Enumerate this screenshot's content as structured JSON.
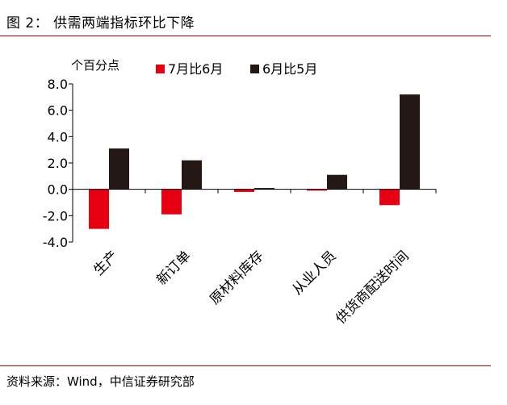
{
  "figure": {
    "title": "图 2：  供需两端指标环比下降",
    "source": "资料来源：Wind，中信证券研究部"
  },
  "chart_data": {
    "type": "bar",
    "title": "",
    "ylabel": "个百分点",
    "xlabel": "",
    "categories": [
      "生产",
      "新订单",
      "原材料库存",
      "从业人员",
      "供货商配送时间"
    ],
    "series": [
      {
        "name": "7月比6月",
        "color": "#e60012",
        "values": [
          -3.0,
          -1.9,
          -0.2,
          -0.1,
          -1.2
        ]
      },
      {
        "name": "6月比5月",
        "color": "#231815",
        "values": [
          3.1,
          2.2,
          0.1,
          1.1,
          7.2
        ]
      }
    ],
    "ylim": [
      -4.0,
      8.0
    ],
    "yticks": [
      "-4.0",
      "-2.0",
      "0.0",
      "2.0",
      "4.0",
      "6.0",
      "8.0"
    ],
    "grid": false,
    "legend": "top"
  }
}
